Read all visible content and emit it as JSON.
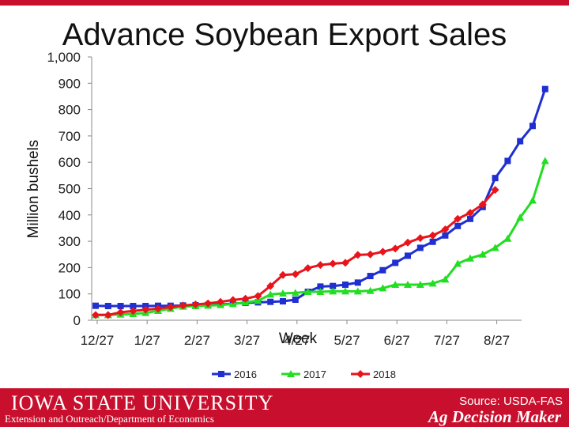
{
  "slide": {
    "title": "Advance Soybean Export Sales",
    "footer_university": "IOWA STATE UNIVERSITY",
    "footer_department": "Extension and Outreach/Department of Economics",
    "source": "Source: USDA-FAS",
    "brand": "Ag Decision Maker",
    "accent_color": "#c8102e"
  },
  "chart_data": {
    "type": "line",
    "title": "Advance Soybean Export Sales",
    "xlabel": "Week",
    "ylabel": "Million bushels",
    "ylim": [
      0,
      1000
    ],
    "yticks": [
      "0",
      "100",
      "200",
      "300",
      "400",
      "500",
      "600",
      "700",
      "800",
      "900",
      "1,000"
    ],
    "xticks": [
      "12/27",
      "1/27",
      "2/27",
      "3/27",
      "4/27",
      "5/27",
      "6/27",
      "7/27",
      "8/27"
    ],
    "grid": false,
    "legend_position": "bottom",
    "series": [
      {
        "name": "2016",
        "color": "#1f2fd1",
        "marker": "square",
        "values": [
          55,
          54,
          54,
          54,
          54,
          55,
          55,
          56,
          57,
          58,
          60,
          63,
          66,
          68,
          70,
          72,
          78,
          108,
          128,
          130,
          135,
          143,
          168,
          190,
          218,
          245,
          275,
          298,
          322,
          358,
          385,
          430,
          540,
          605,
          680,
          738,
          878
        ]
      },
      {
        "name": "2017",
        "color": "#22dd22",
        "marker": "triangle",
        "values": [
          20,
          20,
          22,
          24,
          28,
          36,
          44,
          52,
          54,
          56,
          58,
          62,
          68,
          74,
          98,
          102,
          104,
          108,
          108,
          110,
          110,
          110,
          112,
          122,
          135,
          135,
          135,
          140,
          155,
          215,
          235,
          250,
          275,
          310,
          390,
          455,
          605
        ]
      },
      {
        "name": "2018",
        "color": "#e8141b",
        "marker": "diamond",
        "values": [
          20,
          20,
          30,
          35,
          40,
          44,
          50,
          56,
          60,
          64,
          70,
          77,
          82,
          92,
          130,
          172,
          175,
          198,
          210,
          215,
          218,
          248,
          250,
          260,
          272,
          295,
          312,
          322,
          345,
          385,
          408,
          440,
          495
        ]
      }
    ]
  }
}
